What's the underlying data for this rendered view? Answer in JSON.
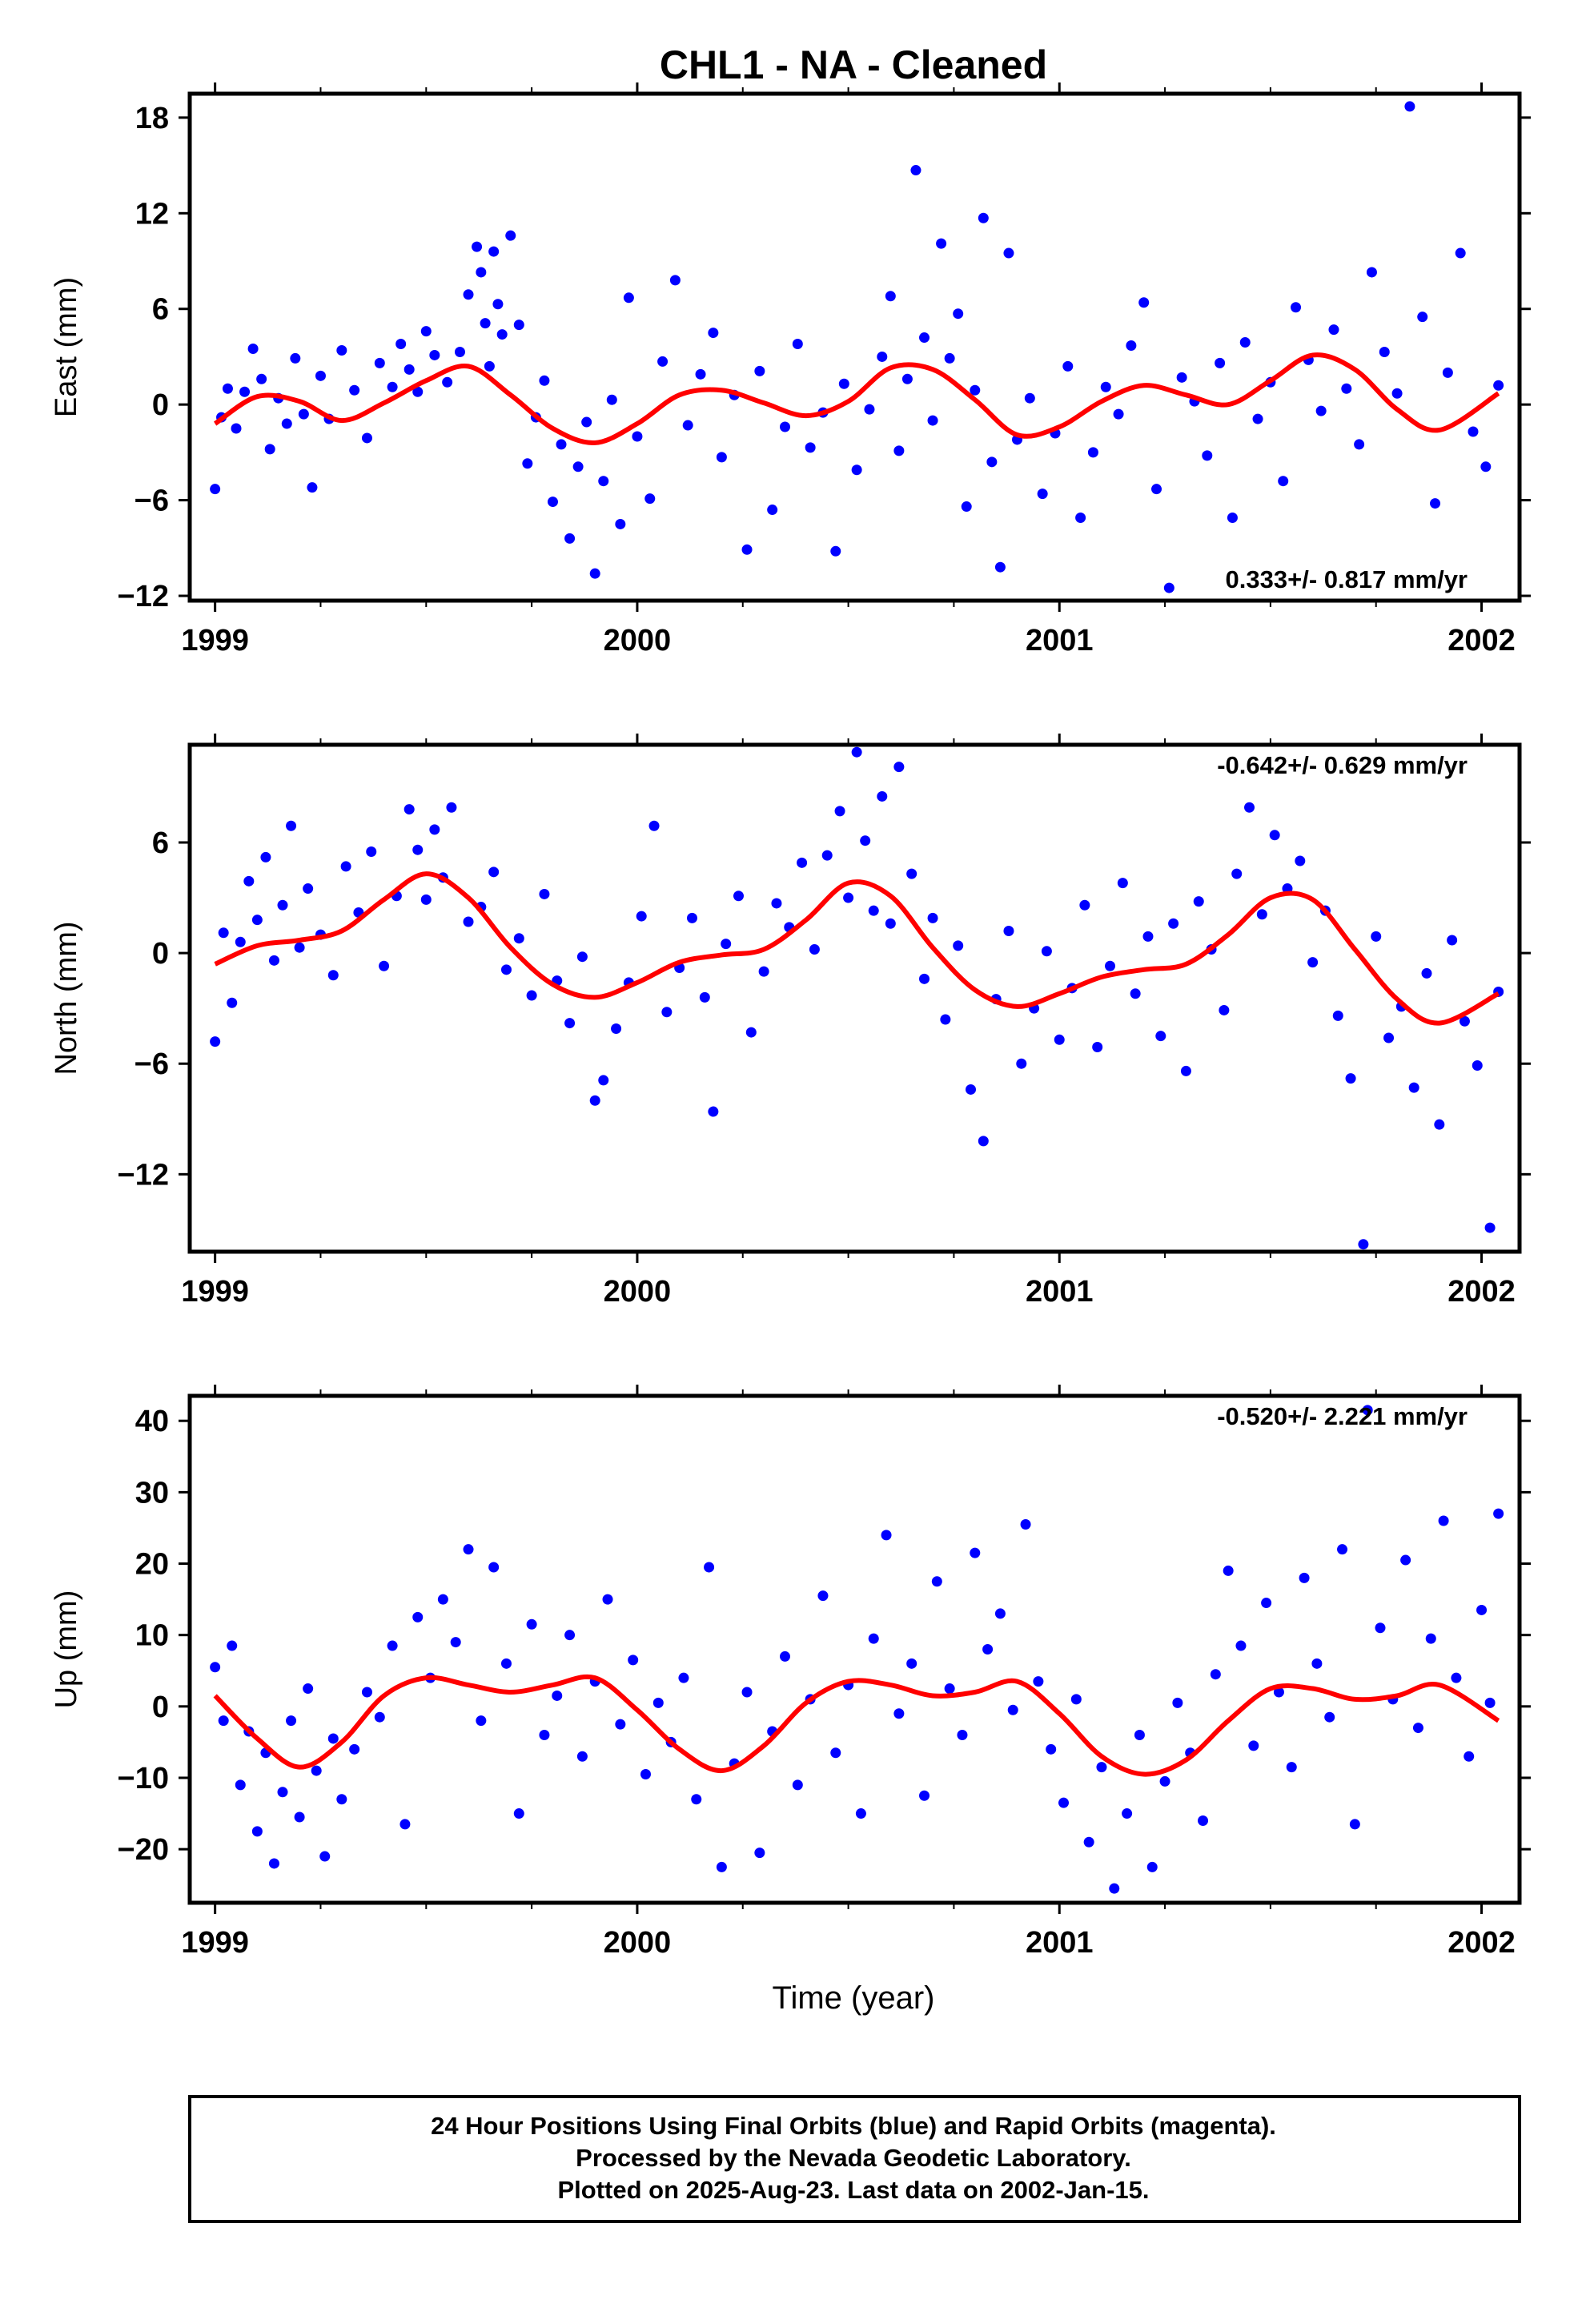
{
  "figure": {
    "title": "CHL1  - NA - Cleaned",
    "xlabel": "Time (year)",
    "footer": [
      "24 Hour Positions Using Final Orbits (blue) and Rapid Orbits (magenta).",
      "Processed by the Nevada Geodetic Laboratory.",
      "Plotted on 2025-Aug-23. Last data on 2002-Jan-15."
    ]
  },
  "colors": {
    "final_orbits": "#0000ff",
    "fit_line": "#ff0000",
    "frame": "#000000"
  },
  "chart_data": [
    {
      "type": "scatter",
      "component": "east",
      "ylabel": "East (mm)",
      "xlim": [
        1998.94,
        2002.09
      ],
      "ylim": [
        -12.3,
        19.5
      ],
      "x_ticks": [
        1999,
        2000,
        2001,
        2002
      ],
      "y_ticks": [
        -12,
        -6,
        0,
        6,
        12,
        18
      ],
      "rate_label": "0.333+/- 0.817 mm/yr",
      "rate_placement": "bottom-right",
      "series": [
        {
          "type": "line",
          "role": "model fit",
          "x": [
            1999.0,
            1999.1,
            1999.2,
            1999.3,
            1999.4,
            1999.5,
            1999.6,
            1999.7,
            1999.8,
            1999.9,
            2000.0,
            2000.1,
            2000.2,
            2000.3,
            2000.4,
            2000.5,
            2000.6,
            2000.7,
            2000.8,
            2000.9,
            2001.0,
            2001.1,
            2001.2,
            2001.3,
            2001.4,
            2001.5,
            2001.6,
            2001.7,
            2001.8,
            2001.9,
            2002.04
          ],
          "values": [
            -1.2,
            0.5,
            0.2,
            -1.0,
            0.1,
            1.5,
            2.4,
            0.6,
            -1.5,
            -2.4,
            -1.2,
            0.6,
            0.9,
            0.1,
            -0.7,
            0.2,
            2.3,
            2.2,
            0.3,
            -1.9,
            -1.4,
            0.2,
            1.2,
            0.6,
            0.0,
            1.5,
            3.1,
            2.2,
            -0.3,
            -1.6,
            0.7
          ]
        },
        {
          "type": "scatter",
          "role": "daily positions",
          "x": [
            1999.0,
            1999.015,
            1999.03,
            1999.05,
            1999.07,
            1999.09,
            1999.11,
            1999.13,
            1999.15,
            1999.17,
            1999.19,
            1999.21,
            1999.23,
            1999.25,
            1999.27,
            1999.3,
            1999.33,
            1999.36,
            1999.39,
            1999.42,
            1999.44,
            1999.46,
            1999.48,
            1999.5,
            1999.52,
            1999.55,
            1999.58,
            1999.6,
            1999.62,
            1999.63,
            1999.64,
            1999.65,
            1999.66,
            1999.67,
            1999.68,
            1999.7,
            1999.72,
            1999.74,
            1999.76,
            1999.78,
            1999.8,
            1999.82,
            1999.84,
            1999.86,
            1999.88,
            1999.9,
            1999.92,
            1999.94,
            1999.96,
            1999.98,
            2000.0,
            2000.03,
            2000.06,
            2000.09,
            2000.12,
            2000.15,
            2000.18,
            2000.2,
            2000.23,
            2000.26,
            2000.29,
            2000.32,
            2000.35,
            2000.38,
            2000.41,
            2000.44,
            2000.47,
            2000.49,
            2000.52,
            2000.55,
            2000.58,
            2000.6,
            2000.62,
            2000.64,
            2000.66,
            2000.68,
            2000.7,
            2000.72,
            2000.74,
            2000.76,
            2000.78,
            2000.8,
            2000.82,
            2000.84,
            2000.86,
            2000.88,
            2000.9,
            2000.93,
            2000.96,
            2000.99,
            2001.02,
            2001.05,
            2001.08,
            2001.11,
            2001.14,
            2001.17,
            2001.2,
            2001.23,
            2001.26,
            2001.29,
            2001.32,
            2001.35,
            2001.38,
            2001.41,
            2001.44,
            2001.47,
            2001.5,
            2001.53,
            2001.56,
            2001.59,
            2001.62,
            2001.65,
            2001.68,
            2001.71,
            2001.74,
            2001.77,
            2001.8,
            2001.83,
            2001.86,
            2001.89,
            2001.92,
            2001.95,
            2001.98,
            2002.01,
            2002.04
          ],
          "values": [
            -5.3,
            -0.8,
            1.0,
            -1.5,
            0.8,
            3.5,
            1.6,
            -2.8,
            0.4,
            -1.2,
            2.9,
            -0.6,
            -5.2,
            1.8,
            -0.9,
            3.4,
            0.9,
            -2.1,
            2.6,
            1.1,
            3.8,
            2.2,
            0.8,
            4.6,
            3.1,
            1.4,
            3.3,
            6.9,
            9.9,
            8.3,
            5.1,
            2.4,
            9.6,
            6.3,
            4.4,
            10.6,
            5.0,
            -3.7,
            -0.8,
            1.5,
            -6.1,
            -2.5,
            -8.4,
            -3.9,
            -1.1,
            -10.6,
            -4.8,
            0.3,
            -7.5,
            6.7,
            -2.0,
            -5.9,
            2.7,
            7.8,
            -1.3,
            1.9,
            4.5,
            -3.3,
            0.6,
            -9.1,
            2.1,
            -6.6,
            -1.4,
            3.8,
            -2.7,
            -0.5,
            -9.2,
            1.3,
            -4.1,
            -0.3,
            3.0,
            6.8,
            -2.9,
            1.6,
            14.7,
            4.2,
            -1.0,
            10.1,
            2.9,
            5.7,
            -6.4,
            0.9,
            11.7,
            -3.6,
            -10.2,
            9.5,
            -2.2,
            0.4,
            -5.6,
            -1.8,
            2.4,
            -7.1,
            -3.0,
            1.1,
            -0.6,
            3.7,
            6.4,
            -5.3,
            -11.5,
            1.7,
            0.2,
            -3.2,
            2.6,
            -7.1,
            3.9,
            -0.9,
            1.4,
            -4.8,
            6.1,
            2.8,
            -0.4,
            4.7,
            1.0,
            -2.5,
            8.3,
            3.3,
            0.7,
            18.7,
            5.5,
            -6.2,
            2.0,
            9.5,
            -1.7,
            -3.9,
            1.2
          ]
        }
      ]
    },
    {
      "type": "scatter",
      "component": "north",
      "ylabel": "North (mm)",
      "xlim": [
        1998.94,
        2002.09
      ],
      "ylim": [
        -16.2,
        11.3
      ],
      "x_ticks": [
        1999,
        2000,
        2001,
        2002
      ],
      "y_ticks": [
        -12,
        -6,
        0,
        6
      ],
      "rate_label": "-0.642+/- 0.629 mm/yr",
      "rate_placement": "top-right",
      "series": [
        {
          "type": "line",
          "role": "model fit",
          "x": [
            1999.0,
            1999.1,
            1999.2,
            1999.3,
            1999.4,
            1999.5,
            1999.6,
            1999.7,
            1999.8,
            1999.9,
            2000.0,
            2000.1,
            2000.2,
            2000.3,
            2000.4,
            2000.5,
            2000.6,
            2000.7,
            2000.8,
            2000.9,
            2001.0,
            2001.1,
            2001.2,
            2001.3,
            2001.4,
            2001.5,
            2001.6,
            2001.7,
            2001.8,
            2001.9,
            2002.04
          ],
          "values": [
            -0.6,
            0.4,
            0.7,
            1.2,
            2.9,
            4.3,
            3.0,
            0.3,
            -1.7,
            -2.4,
            -1.6,
            -0.5,
            -0.1,
            0.2,
            1.8,
            3.8,
            3.1,
            0.3,
            -2.0,
            -2.9,
            -2.2,
            -1.3,
            -0.9,
            -0.6,
            1.0,
            3.0,
            2.9,
            0.2,
            -2.5,
            -3.8,
            -2.2
          ]
        },
        {
          "type": "scatter",
          "role": "daily positions",
          "x": [
            1999.0,
            1999.02,
            1999.04,
            1999.06,
            1999.08,
            1999.1,
            1999.12,
            1999.14,
            1999.16,
            1999.18,
            1999.2,
            1999.22,
            1999.25,
            1999.28,
            1999.31,
            1999.34,
            1999.37,
            1999.4,
            1999.43,
            1999.46,
            1999.48,
            1999.5,
            1999.52,
            1999.54,
            1999.56,
            1999.6,
            1999.63,
            1999.66,
            1999.69,
            1999.72,
            1999.75,
            1999.78,
            1999.81,
            1999.84,
            1999.87,
            1999.9,
            1999.92,
            1999.95,
            1999.98,
            2000.01,
            2000.04,
            2000.07,
            2000.1,
            2000.13,
            2000.16,
            2000.18,
            2000.21,
            2000.24,
            2000.27,
            2000.3,
            2000.33,
            2000.36,
            2000.39,
            2000.42,
            2000.45,
            2000.48,
            2000.5,
            2000.52,
            2000.54,
            2000.56,
            2000.58,
            2000.6,
            2000.62,
            2000.65,
            2000.68,
            2000.7,
            2000.73,
            2000.76,
            2000.79,
            2000.82,
            2000.85,
            2000.88,
            2000.91,
            2000.94,
            2000.97,
            2001.0,
            2001.03,
            2001.06,
            2001.09,
            2001.12,
            2001.15,
            2001.18,
            2001.21,
            2001.24,
            2001.27,
            2001.3,
            2001.33,
            2001.36,
            2001.39,
            2001.42,
            2001.45,
            2001.48,
            2001.51,
            2001.54,
            2001.57,
            2001.6,
            2001.63,
            2001.66,
            2001.69,
            2001.72,
            2001.75,
            2001.78,
            2001.81,
            2001.84,
            2001.87,
            2001.9,
            2001.93,
            2001.96,
            2001.99,
            2002.02,
            2002.04
          ],
          "values": [
            -4.8,
            1.1,
            -2.7,
            0.6,
            3.9,
            1.8,
            5.2,
            -0.4,
            2.6,
            6.9,
            0.3,
            3.5,
            1.0,
            -1.2,
            4.7,
            2.2,
            5.5,
            -0.7,
            3.1,
            7.8,
            5.6,
            2.9,
            6.7,
            4.1,
            7.9,
            1.7,
            2.5,
            4.4,
            -0.9,
            0.8,
            -2.3,
            3.2,
            -1.5,
            -3.8,
            -0.2,
            -8.0,
            -6.9,
            -4.1,
            -1.6,
            2.0,
            6.9,
            -3.2,
            -0.8,
            1.9,
            -2.4,
            -8.6,
            0.5,
            3.1,
            -4.3,
            -1.0,
            2.7,
            1.4,
            4.9,
            0.2,
            5.3,
            7.7,
            3.0,
            10.9,
            6.1,
            2.3,
            8.5,
            1.6,
            10.1,
            4.3,
            -1.4,
            1.9,
            -3.6,
            0.4,
            -7.4,
            -10.2,
            -2.5,
            1.2,
            -6.0,
            -3.0,
            0.1,
            -4.7,
            -1.9,
            2.6,
            -5.1,
            -0.7,
            3.8,
            -2.2,
            0.9,
            -4.5,
            1.6,
            -6.4,
            2.8,
            0.2,
            -3.1,
            4.3,
            7.9,
            2.1,
            6.4,
            3.5,
            5.0,
            -0.5,
            2.3,
            -3.4,
            -6.8,
            -15.8,
            0.9,
            -4.6,
            -2.9,
            -7.3,
            -1.1,
            -9.3,
            0.7,
            -3.7,
            -6.1,
            -14.9,
            -2.1
          ]
        }
      ]
    },
    {
      "type": "scatter",
      "component": "up",
      "ylabel": "Up (mm)",
      "xlim": [
        1998.94,
        2002.09
      ],
      "ylim": [
        -27.5,
        43.5
      ],
      "x_ticks": [
        1999,
        2000,
        2001,
        2002
      ],
      "y_ticks": [
        -20,
        -10,
        0,
        10,
        20,
        30,
        40
      ],
      "rate_label": "-0.520+/- 2.221 mm/yr",
      "rate_placement": "top-right",
      "series": [
        {
          "type": "line",
          "role": "model fit",
          "x": [
            1999.0,
            1999.1,
            1999.2,
            1999.3,
            1999.4,
            1999.5,
            1999.6,
            1999.7,
            1999.8,
            1999.9,
            2000.0,
            2000.1,
            2000.2,
            2000.3,
            2000.4,
            2000.5,
            2000.6,
            2000.7,
            2000.8,
            2000.9,
            2001.0,
            2001.1,
            2001.2,
            2001.3,
            2001.4,
            2001.5,
            2001.6,
            2001.7,
            2001.8,
            2001.9,
            2002.04
          ],
          "values": [
            1.5,
            -4.5,
            -8.5,
            -5.0,
            1.5,
            4.0,
            3.0,
            2.0,
            3.0,
            4.0,
            -0.5,
            -6.0,
            -9.0,
            -5.5,
            0.5,
            3.5,
            3.0,
            1.5,
            2.0,
            3.5,
            -1.0,
            -7.0,
            -9.5,
            -7.5,
            -2.0,
            2.5,
            2.5,
            1.0,
            1.5,
            3.0,
            -2.0
          ]
        },
        {
          "type": "scatter",
          "role": "daily positions",
          "x": [
            1999.0,
            1999.02,
            1999.04,
            1999.06,
            1999.08,
            1999.1,
            1999.12,
            1999.14,
            1999.16,
            1999.18,
            1999.2,
            1999.22,
            1999.24,
            1999.26,
            1999.28,
            1999.3,
            1999.33,
            1999.36,
            1999.39,
            1999.42,
            1999.45,
            1999.48,
            1999.51,
            1999.54,
            1999.57,
            1999.6,
            1999.63,
            1999.66,
            1999.69,
            1999.72,
            1999.75,
            1999.78,
            1999.81,
            1999.84,
            1999.87,
            1999.9,
            1999.93,
            1999.96,
            1999.99,
            2000.02,
            2000.05,
            2000.08,
            2000.11,
            2000.14,
            2000.17,
            2000.2,
            2000.23,
            2000.26,
            2000.29,
            2000.32,
            2000.35,
            2000.38,
            2000.41,
            2000.44,
            2000.47,
            2000.5,
            2000.53,
            2000.56,
            2000.59,
            2000.62,
            2000.65,
            2000.68,
            2000.71,
            2000.74,
            2000.77,
            2000.8,
            2000.83,
            2000.86,
            2000.89,
            2000.92,
            2000.95,
            2000.98,
            2001.01,
            2001.04,
            2001.07,
            2001.1,
            2001.13,
            2001.16,
            2001.19,
            2001.22,
            2001.25,
            2001.28,
            2001.31,
            2001.34,
            2001.37,
            2001.4,
            2001.43,
            2001.46,
            2001.49,
            2001.52,
            2001.55,
            2001.58,
            2001.61,
            2001.64,
            2001.67,
            2001.7,
            2001.73,
            2001.76,
            2001.79,
            2001.82,
            2001.85,
            2001.88,
            2001.91,
            2001.94,
            2001.97,
            2002.0,
            2002.02,
            2002.04
          ],
          "values": [
            5.5,
            -2.0,
            8.5,
            -11.0,
            -3.5,
            -17.5,
            -6.5,
            -22.0,
            -12.0,
            -2.0,
            -15.5,
            2.5,
            -9.0,
            -21.0,
            -4.5,
            -13.0,
            -6.0,
            2.0,
            -1.5,
            8.5,
            -16.5,
            12.5,
            4.0,
            15.0,
            9.0,
            22.0,
            -2.0,
            19.5,
            6.0,
            -15.0,
            11.5,
            -4.0,
            1.5,
            10.0,
            -7.0,
            3.5,
            15.0,
            -2.5,
            6.5,
            -9.5,
            0.5,
            -5.0,
            4.0,
            -13.0,
            19.5,
            -22.5,
            -8.0,
            2.0,
            -20.5,
            -3.5,
            7.0,
            -11.0,
            1.0,
            15.5,
            -6.5,
            3.0,
            -15.0,
            9.5,
            24.0,
            -1.0,
            6.0,
            -12.5,
            17.5,
            2.5,
            -4.0,
            21.5,
            8.0,
            13.0,
            -0.5,
            25.5,
            3.5,
            -6.0,
            -13.5,
            1.0,
            -19.0,
            -8.5,
            -25.5,
            -15.0,
            -4.0,
            -22.5,
            -10.5,
            0.5,
            -6.5,
            -16.0,
            4.5,
            19.0,
            8.5,
            -5.5,
            14.5,
            2.0,
            -8.5,
            18.0,
            6.0,
            -1.5,
            22.0,
            -16.5,
            41.5,
            11.0,
            1.0,
            20.5,
            -3.0,
            9.5,
            26.0,
            4.0,
            -7.0,
            13.5,
            0.5,
            27.0
          ]
        }
      ]
    }
  ]
}
